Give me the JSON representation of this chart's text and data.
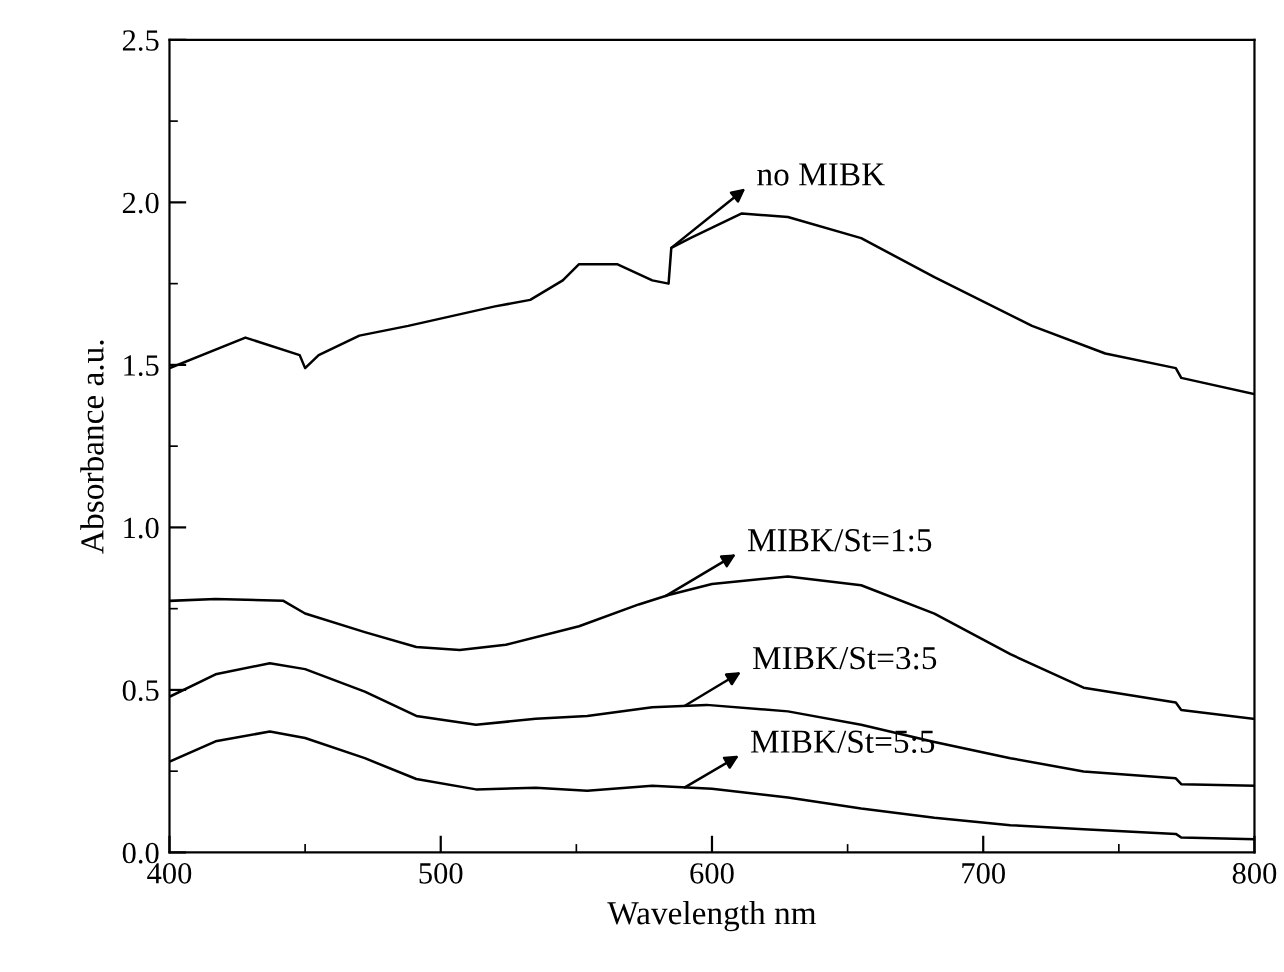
{
  "chart_data": {
    "type": "line",
    "xlabel": "Wavelength nm",
    "ylabel": "Absorbance a.u.",
    "xlim": [
      400,
      800
    ],
    "xticks": [
      400,
      500,
      600,
      700,
      800
    ],
    "ylim": [
      0,
      2.5
    ],
    "yticks": [
      {
        "value": 0,
        "label": "0.0"
      },
      {
        "value": 0.5,
        "label": "0.5"
      },
      {
        "value": 1,
        "label": "1.0"
      },
      {
        "value": 1.5,
        "label": "1.5"
      },
      {
        "value": 2,
        "label": "2.0"
      },
      {
        "value": 2.5,
        "label": "2.5"
      }
    ],
    "grid": false,
    "legend": "right",
    "marker": "none",
    "line_style": "solid",
    "series": [
      {
        "name": "no MIBK",
        "color": "#000000",
        "x": [
          400,
          428,
          448,
          450,
          455,
          470,
          488,
          520,
          533,
          545,
          551,
          565,
          578,
          584,
          585,
          592,
          611,
          628,
          655,
          682,
          718,
          745,
          771,
          773,
          800
        ],
        "values": [
          1.49,
          1.584,
          1.53,
          1.49,
          1.53,
          1.59,
          1.62,
          1.68,
          1.7,
          1.76,
          1.81,
          1.81,
          1.76,
          1.75,
          1.86,
          1.89,
          1.966,
          1.955,
          1.89,
          1.77,
          1.62,
          1.535,
          1.49,
          1.46,
          1.41
        ]
      },
      {
        "name": "MIBK/St=1:5",
        "color": "#000000",
        "x": [
          400,
          417,
          442,
          450,
          472,
          491,
          507,
          524,
          551,
          573,
          584,
          600,
          628,
          655,
          682,
          710,
          737,
          771,
          773,
          800
        ],
        "values": [
          0.774,
          0.78,
          0.774,
          0.735,
          0.678,
          0.632,
          0.623,
          0.639,
          0.696,
          0.763,
          0.792,
          0.826,
          0.849,
          0.822,
          0.735,
          0.61,
          0.507,
          0.461,
          0.438,
          0.411
        ]
      },
      {
        "name": "MIBK/St=3:5",
        "color": "#000000",
        "x": [
          400,
          417,
          437,
          450,
          472,
          491,
          513,
          535,
          554,
          578,
          598,
          628,
          655,
          682,
          710,
          737,
          771,
          773,
          800
        ],
        "values": [
          0.479,
          0.548,
          0.582,
          0.564,
          0.495,
          0.42,
          0.393,
          0.411,
          0.42,
          0.447,
          0.454,
          0.434,
          0.393,
          0.34,
          0.29,
          0.249,
          0.228,
          0.21,
          0.205
        ]
      },
      {
        "name": "MIBK/St=5:5",
        "color": "#000000",
        "x": [
          400,
          417,
          437,
          450,
          472,
          491,
          513,
          535,
          554,
          578,
          600,
          628,
          655,
          682,
          710,
          737,
          771,
          773,
          800
        ],
        "values": [
          0.279,
          0.342,
          0.372,
          0.352,
          0.29,
          0.226,
          0.194,
          0.199,
          0.19,
          0.205,
          0.196,
          0.169,
          0.135,
          0.107,
          0.084,
          0.071,
          0.057,
          0.046,
          0.041
        ]
      }
    ]
  }
}
